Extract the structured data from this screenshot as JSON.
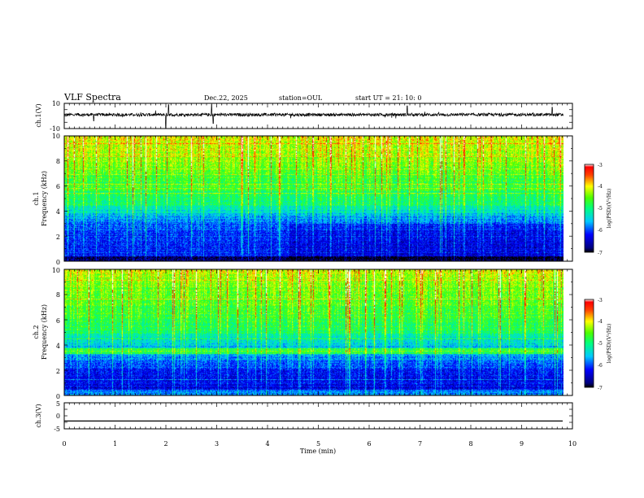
{
  "header": {
    "title": "VLF Spectra",
    "date": "Dec.22, 2025",
    "station": "station=OUL",
    "start": "start  UT =   21: 10: 0"
  },
  "chart_data": [
    {
      "type": "line",
      "name": "ch1-waveform",
      "ylabel": "ch.1(V)",
      "ylim": [
        -10,
        10
      ],
      "yticks": [
        "10",
        "-10"
      ],
      "xlim": [
        0,
        10
      ],
      "baseline": 1.0,
      "noise_amplitude": 1.2,
      "spikes": [
        {
          "t": 2.0,
          "v": -10
        },
        {
          "t": 2.05,
          "v": 9
        },
        {
          "t": 2.9,
          "v": 9
        },
        {
          "t": 2.93,
          "v": -6
        },
        {
          "t": 6.75,
          "v": 8
        },
        {
          "t": 0.58,
          "v": -4
        },
        {
          "t": 9.6,
          "v": 7
        }
      ]
    },
    {
      "type": "heatmap",
      "name": "ch1-spectrogram",
      "ylabel": "ch.1",
      "ylabel2": "Frequency (kHz)",
      "ylim": [
        0,
        10
      ],
      "yticks": [
        "0",
        "2",
        "4",
        "6",
        "8",
        "10"
      ],
      "xlim": [
        0,
        9.82
      ],
      "colorbar": {
        "label": "log(PSD)(V²/Hz)",
        "range": [
          -7,
          -3
        ],
        "ticks": [
          "-3",
          "-4",
          "-5",
          "-6",
          "-7"
        ]
      }
    },
    {
      "type": "heatmap",
      "name": "ch2-spectrogram",
      "ylabel": "ch.2",
      "ylabel2": "Frequency (kHz)",
      "ylim": [
        0,
        10
      ],
      "yticks": [
        "0",
        "2",
        "4",
        "6",
        "8",
        "10"
      ],
      "xlim": [
        0,
        9.82
      ],
      "colorbar": {
        "label": "log(PSD)(V²/Hz)",
        "range": [
          -7,
          -3
        ],
        "ticks": [
          "-3",
          "-4",
          "-5",
          "-6",
          "-7"
        ]
      }
    },
    {
      "type": "line",
      "name": "ch3-waveform",
      "ylabel": "ch.3(V)",
      "ylim": [
        -5,
        5
      ],
      "yticks": [
        "5",
        "0",
        "-5"
      ],
      "xlim": [
        0,
        10
      ],
      "constant": -2.0
    }
  ],
  "xaxis": {
    "label": "Time (min)",
    "ticks": [
      "0",
      "1",
      "2",
      "3",
      "4",
      "5",
      "6",
      "7",
      "8",
      "9",
      "10"
    ],
    "range": [
      0,
      10
    ]
  }
}
